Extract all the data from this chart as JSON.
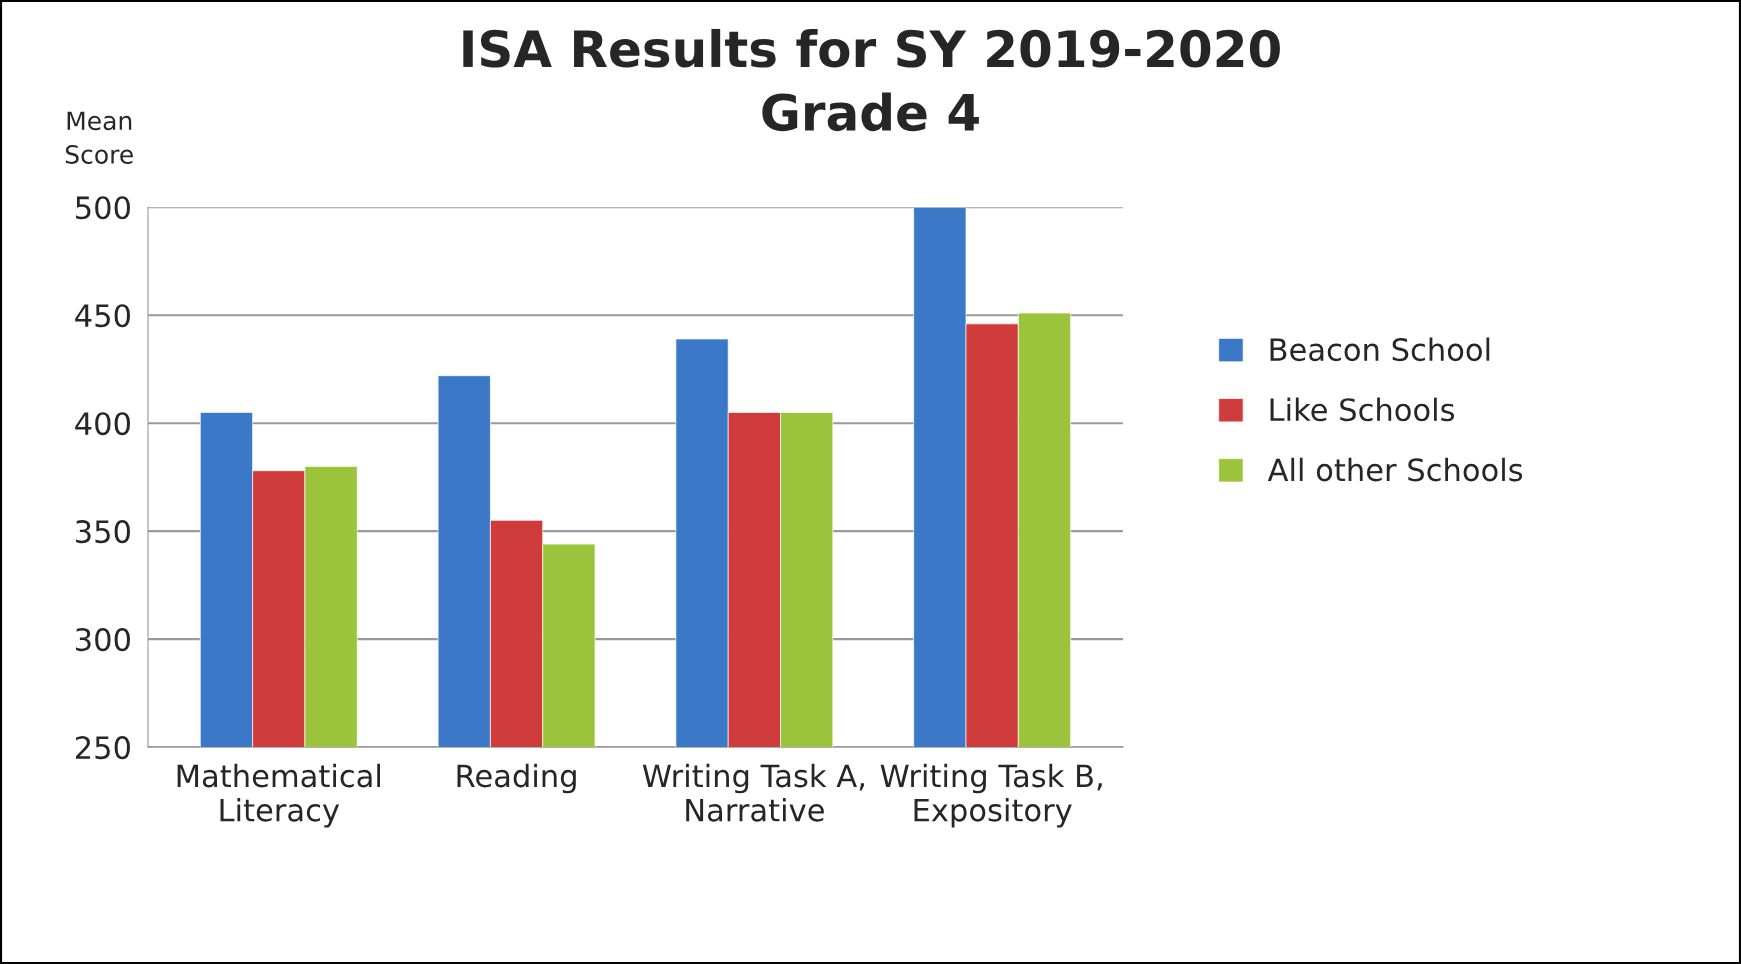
{
  "chart_data": {
    "type": "bar",
    "title": "ISA Results for SY 2019-2020\nGrade 4",
    "ylabel": "Mean\nScore",
    "categories": [
      "Mathematical\nLiteracy",
      "Reading",
      "Writing Task A,\nNarrative",
      "Writing Task B,\nExpository"
    ],
    "series": [
      {
        "name": "Beacon School",
        "color": "#3b78c8",
        "values": [
          405,
          422,
          439,
          500
        ]
      },
      {
        "name": "Like Schools",
        "color": "#d03b3b",
        "values": [
          378,
          355,
          405,
          446
        ]
      },
      {
        "name": "All other Schools",
        "color": "#9bc43c",
        "values": [
          380,
          344,
          405,
          451
        ]
      }
    ],
    "ylim": [
      250,
      500
    ],
    "yticks": [
      250,
      300,
      350,
      400,
      450,
      500
    ],
    "grid": "y",
    "legend": "right"
  }
}
